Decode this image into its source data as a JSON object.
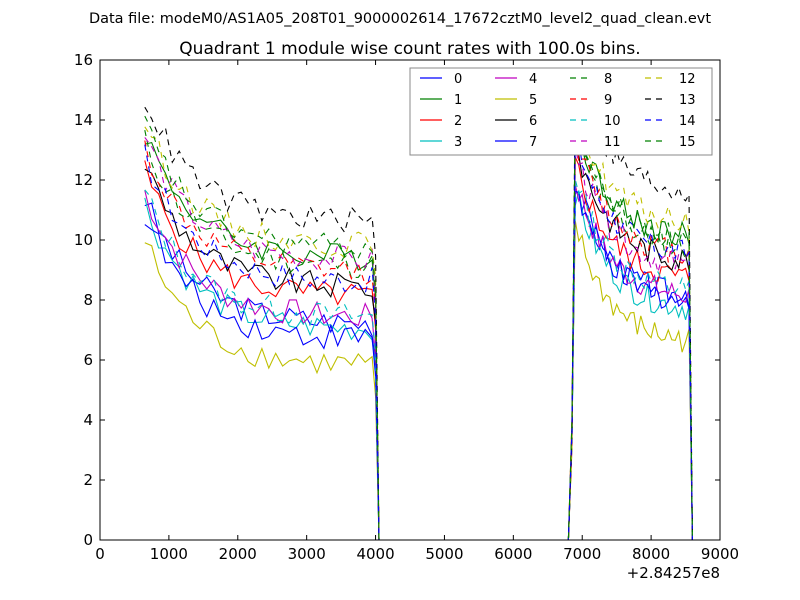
{
  "chart_data": {
    "type": "line",
    "suptitle": "Data file: modeM0/AS1A05_208T01_9000002614_17672cztM0_level2_quad_clean.evt",
    "title": "Quadrant 1 module wise count rates with 100.0s bins.",
    "xlabel": "",
    "ylabel": "",
    "x_offset_label": "+2.84257e8",
    "xlim": [
      0,
      9000
    ],
    "ylim": [
      0,
      16
    ],
    "xticks": [
      0,
      1000,
      2000,
      3000,
      4000,
      5000,
      6000,
      7000,
      8000,
      9000
    ],
    "yticks": [
      0,
      2,
      4,
      6,
      8,
      10,
      12,
      14,
      16
    ],
    "grid": false,
    "legend_position": "top-right",
    "legend_columns": 4,
    "series": [
      {
        "name": "0",
        "color": "#0000ff",
        "dashed": false,
        "level_a": 7.2,
        "level_b": 8.0
      },
      {
        "name": "1",
        "color": "#008000",
        "dashed": false,
        "level_a": 9.4,
        "level_b": 10.0
      },
      {
        "name": "2",
        "color": "#ff0000",
        "dashed": false,
        "level_a": 8.1,
        "level_b": 8.6
      },
      {
        "name": "3",
        "color": "#00bfbf",
        "dashed": false,
        "level_a": 7.0,
        "level_b": 7.6
      },
      {
        "name": "4",
        "color": "#bf00bf",
        "dashed": false,
        "level_a": 7.4,
        "level_b": 8.0
      },
      {
        "name": "5",
        "color": "#bfbf00",
        "dashed": false,
        "level_a": 5.8,
        "level_b": 6.5
      },
      {
        "name": "6",
        "color": "#000000",
        "dashed": false,
        "level_a": 8.4,
        "level_b": 9.2
      },
      {
        "name": "7",
        "color": "#0000ff",
        "dashed": false,
        "level_a": 6.7,
        "level_b": 7.8
      },
      {
        "name": "8",
        "color": "#008000",
        "dashed": true,
        "level_a": 9.1,
        "level_b": 9.6
      },
      {
        "name": "9",
        "color": "#ff0000",
        "dashed": true,
        "level_a": 8.9,
        "level_b": 9.4
      },
      {
        "name": "10",
        "color": "#00bfbf",
        "dashed": true,
        "level_a": 7.4,
        "level_b": 8.2
      },
      {
        "name": "11",
        "color": "#bf00bf",
        "dashed": true,
        "level_a": 9.3,
        "level_b": 9.0
      },
      {
        "name": "12",
        "color": "#bfbf00",
        "dashed": true,
        "level_a": 9.8,
        "level_b": 10.4
      },
      {
        "name": "13",
        "color": "#000000",
        "dashed": true,
        "level_a": 10.6,
        "level_b": 11.5
      },
      {
        "name": "14",
        "color": "#0000ff",
        "dashed": true,
        "level_a": 8.6,
        "level_b": 9.4
      },
      {
        "name": "15",
        "color": "#008000",
        "dashed": true,
        "level_a": 9.7,
        "level_b": 9.9
      }
    ]
  }
}
